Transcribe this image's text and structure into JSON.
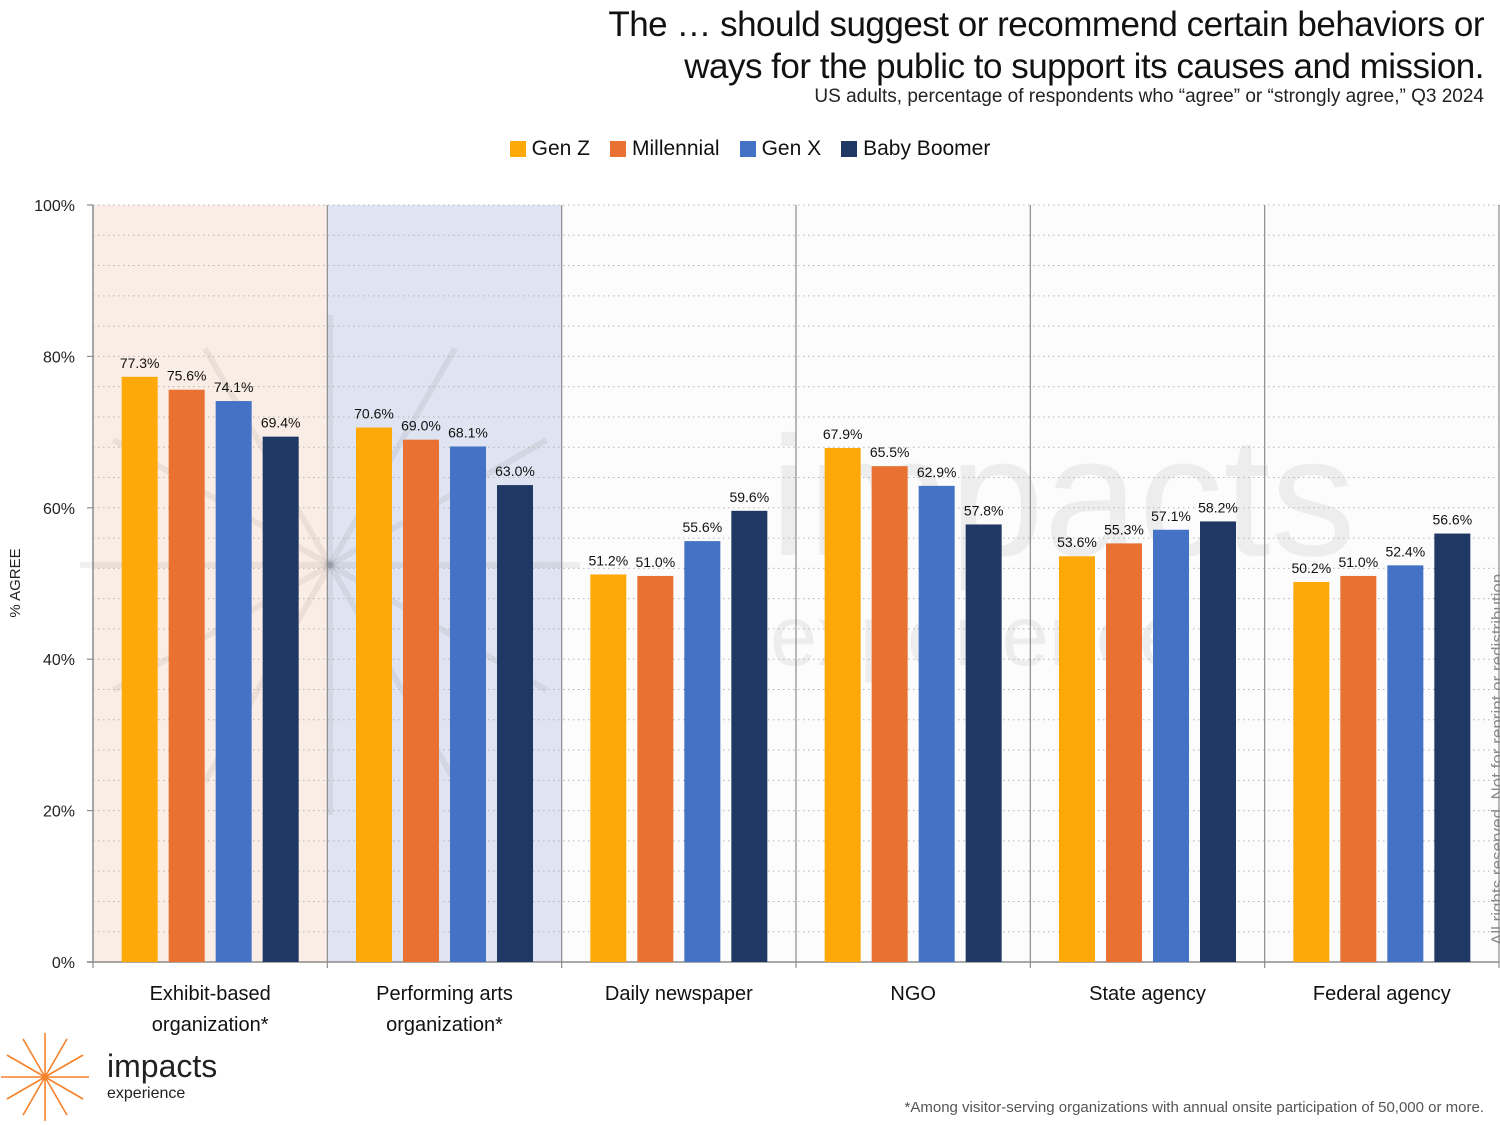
{
  "header": {
    "title_line1": "The … should suggest or recommend certain behaviors or",
    "title_line2": "ways for the public to support its causes and mission.",
    "subtitle": "US adults, percentage of respondents who “agree” or “strongly agree,” Q3 2024"
  },
  "watermark": {
    "side_text": "All rights reserved. Not for reprint or redistribution.",
    "bg_word1": "impacts",
    "bg_word2": "experience"
  },
  "logo": {
    "name": "impacts",
    "sub": "experience",
    "color": "#f5822a"
  },
  "footnote": "*Among visitor-serving organizations with annual onsite participation of 50,000 or more.",
  "chart_data": {
    "type": "bar",
    "title": "The … should suggest or recommend certain behaviors or ways for the public to support its causes and mission.",
    "subtitle": "US adults, percentage of respondents who “agree” or “strongly agree,” Q3 2024",
    "xlabel": "",
    "ylabel": "% AGREE",
    "ylim": [
      0,
      100
    ],
    "yticks": [
      0,
      20,
      40,
      60,
      80,
      100
    ],
    "ytick_labels": [
      "0%",
      "20%",
      "40%",
      "60%",
      "80%",
      "100%"
    ],
    "minor_grid_step": 4,
    "grid": true,
    "legend_position": "top-center",
    "categories": [
      "Exhibit-based organization*",
      "Performing arts organization*",
      "Daily newspaper",
      "NGO",
      "State agency",
      "Federal agency"
    ],
    "category_lines": [
      [
        "Exhibit-based",
        "organization*"
      ],
      [
        "Performing arts",
        "organization*"
      ],
      [
        "Daily newspaper"
      ],
      [
        "NGO"
      ],
      [
        "State agency"
      ],
      [
        "Federal agency"
      ]
    ],
    "category_backgrounds": [
      "#faede5",
      "#dee4f1",
      "#fcfcfc",
      "#fcfcfc",
      "#fcfcfc",
      "#fcfcfc"
    ],
    "series": [
      {
        "name": "Gen Z",
        "color": "#ffa908",
        "values": [
          77.3,
          70.6,
          51.2,
          67.9,
          53.6,
          50.2
        ]
      },
      {
        "name": "Millennial",
        "color": "#e97132",
        "values": [
          75.6,
          69.0,
          51.0,
          65.5,
          55.3,
          51.0
        ]
      },
      {
        "name": "Gen X",
        "color": "#4472c4",
        "values": [
          74.1,
          68.1,
          55.6,
          62.9,
          57.1,
          52.4
        ]
      },
      {
        "name": "Baby Boomer",
        "color": "#203864",
        "values": [
          69.4,
          63.0,
          59.6,
          57.8,
          58.2,
          56.6
        ]
      }
    ],
    "data_label_format": "{v}%",
    "data_label_decimals": 1
  }
}
